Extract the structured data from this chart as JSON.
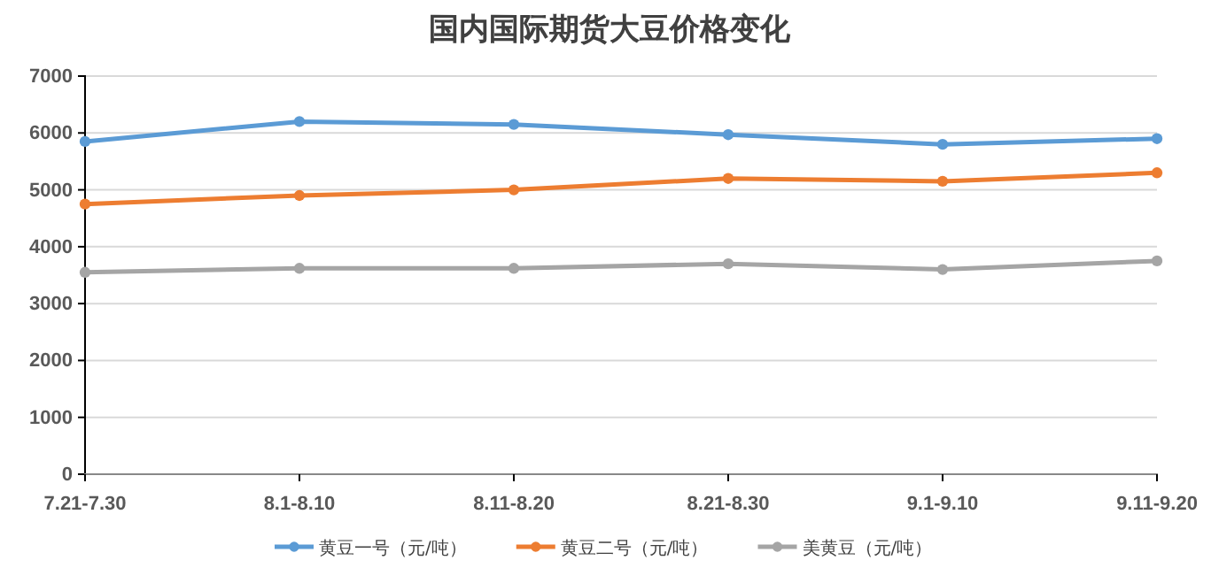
{
  "chart_data": {
    "type": "line",
    "title": "国内国际期货大豆价格变化",
    "categories": [
      "7.21-7.30",
      "8.1-8.10",
      "8.11-8.20",
      "8.21-8.30",
      "9.1-9.10",
      "9.11-9.20"
    ],
    "series": [
      {
        "name": "黄豆一号（元/吨）",
        "color": "#5b9bd5",
        "values": [
          5850,
          6200,
          6150,
          5970,
          5800,
          5900
        ]
      },
      {
        "name": "黄豆二号（元/吨）",
        "color": "#ed7d31",
        "values": [
          4750,
          4900,
          5000,
          5200,
          5150,
          5300
        ]
      },
      {
        "name": "美黄豆（元/吨）",
        "color": "#a5a5a5",
        "values": [
          3550,
          3620,
          3620,
          3700,
          3600,
          3750
        ]
      }
    ],
    "ylim": [
      0,
      7000
    ],
    "yticks": [
      0,
      1000,
      2000,
      3000,
      4000,
      5000,
      6000,
      7000
    ],
    "grid": "y",
    "legend": "bottom",
    "marker": "circle",
    "line_style": "solid"
  }
}
